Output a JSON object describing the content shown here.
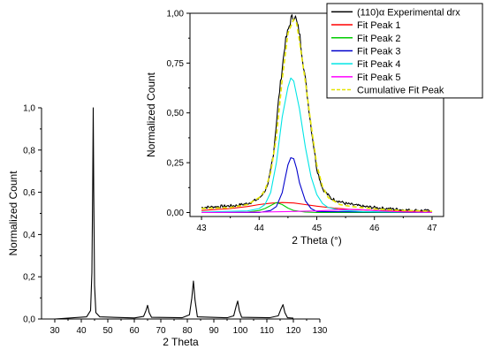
{
  "chart_data": [
    {
      "type": "line",
      "title": "",
      "xlabel": "2 Theta",
      "ylabel": "Normalized Count",
      "xlim": [
        25,
        130
      ],
      "ylim": [
        0,
        1.0
      ],
      "x_ticks": [
        "30",
        "40",
        "50",
        "60",
        "70",
        "80",
        "90",
        "100",
        "110",
        "120",
        "130"
      ],
      "y_ticks": [
        "0,0",
        "0,2",
        "0,4",
        "0,6",
        "0,8",
        "1,0"
      ],
      "grid": false,
      "legend": "none",
      "series": [
        {
          "color": "#000000",
          "x": [
            30,
            42.0,
            43.5,
            44.0,
            44.3,
            44.5,
            44.7,
            45.0,
            45.5,
            47,
            60,
            63.5,
            64.4,
            65.0,
            65.6,
            66.5,
            78,
            80.8,
            81.7,
            82.3,
            82.9,
            83.8,
            95,
            97.5,
            98.4,
            99.0,
            99.6,
            100.5,
            111,
            114.3,
            115.4,
            116.1,
            116.8,
            117.8,
            120
          ],
          "y": [
            0.0,
            0.01,
            0.04,
            0.22,
            0.62,
            1.0,
            0.6,
            0.16,
            0.03,
            0.01,
            0.005,
            0.012,
            0.04,
            0.065,
            0.03,
            0.008,
            0.006,
            0.02,
            0.1,
            0.18,
            0.09,
            0.01,
            0.006,
            0.015,
            0.06,
            0.085,
            0.04,
            0.008,
            0.006,
            0.015,
            0.05,
            0.068,
            0.03,
            0.006,
            0.004
          ]
        }
      ]
    },
    {
      "type": "line",
      "title": "",
      "xlabel": "2 Theta (°)",
      "ylabel": "Normalized Count",
      "xlim": [
        42.8,
        47.2
      ],
      "ylim": [
        -0.02,
        1.0
      ],
      "x_ticks": [
        "43",
        "44",
        "45",
        "46",
        "47"
      ],
      "y_ticks": [
        "0,00",
        "0,25",
        "0,50",
        "0,75",
        "1,00"
      ],
      "grid": false,
      "legend": "top-right",
      "series": [
        {
          "name": "(110)α Experimental drx",
          "color": "#000000",
          "noisy": true,
          "x": [
            43.0,
            43.3,
            43.6,
            43.8,
            44.0,
            44.15,
            44.25,
            44.35,
            44.45,
            44.55,
            44.62,
            44.7,
            44.8,
            44.9,
            45.0,
            45.1,
            45.25,
            45.5,
            45.8,
            46.2,
            46.6,
            47.0
          ],
          "y": [
            0.025,
            0.03,
            0.035,
            0.045,
            0.07,
            0.13,
            0.3,
            0.6,
            0.85,
            0.97,
            0.99,
            0.9,
            0.67,
            0.43,
            0.22,
            0.12,
            0.07,
            0.045,
            0.03,
            0.02,
            0.012,
            0.008
          ]
        },
        {
          "name": "Fit Peak 1",
          "color": "#ff0000",
          "x": [
            43.0,
            43.5,
            43.8,
            44.0,
            44.2,
            44.4,
            44.6,
            44.8,
            45.0,
            45.3,
            45.6,
            46.0,
            46.5,
            47.0
          ],
          "y": [
            0.01,
            0.02,
            0.03,
            0.04,
            0.047,
            0.05,
            0.048,
            0.04,
            0.032,
            0.022,
            0.015,
            0.01,
            0.006,
            0.004
          ]
        },
        {
          "name": "Fit Peak 2",
          "color": "#00cc00",
          "x": [
            43.0,
            43.5,
            43.8,
            44.0,
            44.1,
            44.2,
            44.3,
            44.4,
            44.5,
            44.6,
            44.8,
            45.0,
            47.0
          ],
          "y": [
            0.0,
            0.0,
            0.002,
            0.01,
            0.02,
            0.035,
            0.05,
            0.04,
            0.022,
            0.01,
            0.002,
            0.0,
            0.0
          ]
        },
        {
          "name": "Fit Peak 3",
          "color": "#0000cc",
          "x": [
            43.0,
            44.0,
            44.2,
            44.3,
            44.4,
            44.45,
            44.5,
            44.55,
            44.6,
            44.65,
            44.7,
            44.8,
            44.9,
            45.0,
            47.0
          ],
          "y": [
            0.0,
            0.0,
            0.01,
            0.03,
            0.1,
            0.17,
            0.24,
            0.275,
            0.27,
            0.22,
            0.15,
            0.06,
            0.02,
            0.005,
            0.0
          ]
        },
        {
          "name": "Fit Peak 4",
          "color": "#00e5e5",
          "x": [
            43.0,
            43.8,
            44.0,
            44.1,
            44.2,
            44.3,
            44.4,
            44.5,
            44.55,
            44.6,
            44.7,
            44.8,
            44.9,
            45.0,
            45.1,
            45.2,
            45.4,
            45.8,
            47.0
          ],
          "y": [
            0.002,
            0.008,
            0.02,
            0.04,
            0.1,
            0.25,
            0.48,
            0.63,
            0.675,
            0.66,
            0.52,
            0.33,
            0.18,
            0.09,
            0.045,
            0.025,
            0.012,
            0.005,
            0.001
          ]
        },
        {
          "name": "Fit Peak 5",
          "color": "#ff00ff",
          "x": [
            43.0,
            44.0,
            44.5,
            45.0,
            45.3,
            45.5,
            45.6,
            45.7,
            45.9,
            46.1,
            46.5,
            47.0
          ],
          "y": [
            0.0,
            0.002,
            0.005,
            0.008,
            0.012,
            0.015,
            0.016,
            0.015,
            0.012,
            0.008,
            0.003,
            0.001
          ]
        },
        {
          "name": "Cumulative Fit Peak",
          "color": "#e5e500",
          "dashed": true,
          "x": [
            43.0,
            43.5,
            43.8,
            44.0,
            44.1,
            44.2,
            44.3,
            44.4,
            44.5,
            44.6,
            44.65,
            44.7,
            44.8,
            44.9,
            45.0,
            45.1,
            45.2,
            45.4,
            45.6,
            46.0,
            46.5,
            47.0
          ],
          "y": [
            0.02,
            0.025,
            0.04,
            0.075,
            0.11,
            0.2,
            0.38,
            0.67,
            0.9,
            0.97,
            0.95,
            0.86,
            0.66,
            0.44,
            0.24,
            0.13,
            0.075,
            0.04,
            0.03,
            0.018,
            0.01,
            0.006
          ]
        }
      ]
    }
  ]
}
